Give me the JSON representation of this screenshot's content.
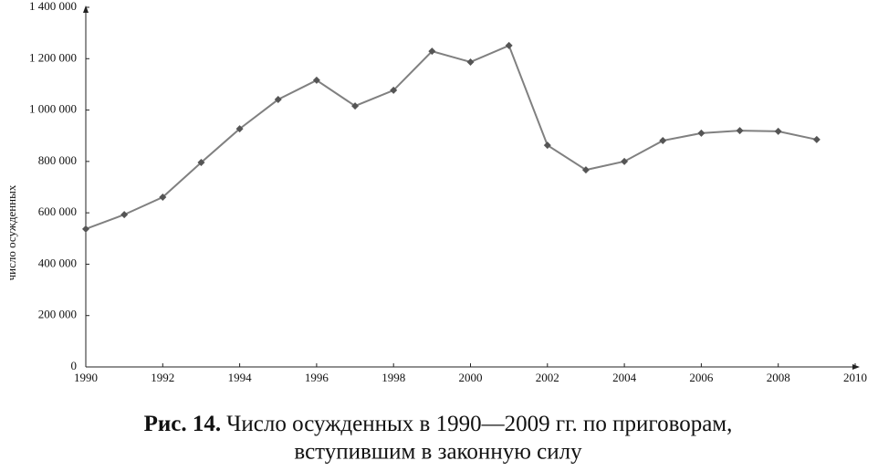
{
  "chart_data": {
    "type": "line",
    "ylabel": "число осужденных",
    "caption_label": "Рис. 14.",
    "caption_lines": [
      "Число осужденных в 1990—2009 гг. по приговорам,",
      "вступившим в законную силу"
    ],
    "x": [
      1990,
      1991,
      1992,
      1993,
      1994,
      1995,
      1996,
      1997,
      1998,
      1999,
      2000,
      2001,
      2002,
      2003,
      2004,
      2005,
      2006,
      2007,
      2008,
      2009
    ],
    "values": [
      537000,
      593000,
      661000,
      796000,
      927000,
      1041000,
      1116000,
      1016000,
      1077000,
      1229000,
      1187000,
      1251000,
      863000,
      767000,
      800000,
      881000,
      910000,
      920000,
      917000,
      885000
    ],
    "color": "#808080",
    "marker_color": "#555555",
    "xlim": [
      1990,
      2010
    ],
    "xticks": [
      1990,
      1992,
      1994,
      1996,
      1998,
      2000,
      2002,
      2004,
      2006,
      2008,
      2010
    ],
    "ylim": [
      0,
      1400000
    ],
    "yticks": [
      0,
      {
        "value": 200000,
        "label": "200 000"
      },
      {
        "value": 400000,
        "label": "400 000"
      },
      {
        "value": 600000,
        "label": "600 000"
      },
      {
        "value": 800000,
        "label": "800 000"
      },
      {
        "value": 1000000,
        "label": "1 000 000"
      },
      {
        "value": 1200000,
        "label": "1 200 000"
      },
      {
        "value": 1400000,
        "label": "1 400 000"
      }
    ],
    "grid": false
  }
}
